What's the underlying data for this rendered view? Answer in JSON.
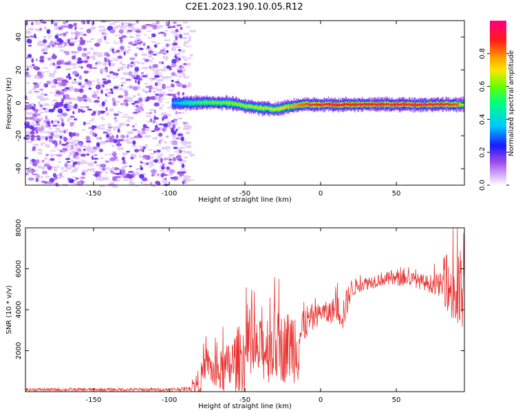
{
  "title": "C2E1.2023.190.10.05.R12",
  "colors": {
    "snr_line": "#e8312f",
    "cmap": [
      "#ffffff",
      "#cfa8f7",
      "#9b4de8",
      "#7a16e6",
      "#1a1aff",
      "#00c8ff",
      "#00ff7f",
      "#c8ff00",
      "#ff9900",
      "#ff1a1a",
      "#ff0080"
    ]
  },
  "chart_data": [
    {
      "type": "heatmap",
      "xlabel": "Height of straight line (km)",
      "ylabel": "Frequency (Hz)",
      "xlim": [
        -195,
        95
      ],
      "ylim": [
        -50,
        50
      ],
      "xticks": [
        -150,
        -100,
        -50,
        0,
        50
      ],
      "yticks": [
        -40,
        -20,
        0,
        20,
        40
      ],
      "colorbar": {
        "label": "Normalized spectral amplitude",
        "range": [
          0,
          1
        ],
        "ticks": [
          "0.0",
          "0.2",
          "0.4",
          "0.6",
          "0.8"
        ],
        "tick_values": [
          0.0,
          0.2,
          0.4,
          0.6,
          0.8
        ]
      },
      "noise_region_x": [
        -195,
        -86
      ],
      "signal_onset_x": -100,
      "signal_track": {
        "x": [
          -98,
          -90,
          -80,
          -70,
          -60,
          -50,
          -40,
          -30,
          -20,
          -10,
          0,
          10,
          20,
          30,
          40,
          50,
          60,
          70,
          80,
          90,
          95
        ],
        "freq_hz": [
          0,
          0,
          0,
          0,
          0,
          -2,
          -3,
          -4,
          -2,
          -1,
          -1,
          -1,
          -1,
          -1,
          -1,
          -1,
          -1,
          -1,
          -1,
          -1,
          -1
        ],
        "amplitude": [
          0.35,
          0.45,
          0.55,
          0.6,
          0.62,
          0.65,
          0.66,
          0.68,
          0.75,
          0.85,
          0.9,
          0.9,
          0.88,
          0.88,
          0.88,
          0.9,
          0.9,
          0.9,
          0.88,
          0.85,
          0.6
        ]
      }
    },
    {
      "type": "line",
      "xlabel": "Height of straight line (km)",
      "ylabel": "SNR (10 * v/v)",
      "xlim": [
        -195,
        95
      ],
      "ylim": [
        0,
        8000
      ],
      "xticks": [
        -150,
        -100,
        -50,
        0,
        50
      ],
      "yticks": [
        2000,
        4000,
        6000,
        8000
      ],
      "series": [
        {
          "x": [
            -195,
            -150,
            -100,
            -86,
            -80,
            -75,
            -70,
            -60,
            -55,
            -50,
            -45,
            -40,
            -35,
            -30,
            -25,
            -20,
            -15,
            -10,
            -5,
            0,
            5,
            10,
            15,
            20,
            25,
            30,
            40,
            50,
            60,
            70,
            80,
            85,
            90,
            95
          ],
          "y_base": [
            100,
            100,
            100,
            150,
            500,
            1500,
            800,
            1200,
            1600,
            1700,
            1800,
            2000,
            2200,
            2300,
            2100,
            2300,
            2500,
            3400,
            3500,
            3900,
            3800,
            4100,
            3800,
            5000,
            5200,
            5300,
            5500,
            5500,
            5500,
            5300,
            5200,
            5000,
            4800,
            4700
          ],
          "y_spread": [
            80,
            80,
            80,
            100,
            700,
            700,
            900,
            1300,
            1600,
            1800,
            1600,
            1500,
            1800,
            1800,
            1700,
            1800,
            2200,
            900,
            600,
            500,
            600,
            600,
            900,
            500,
            350,
            350,
            350,
            350,
            350,
            400,
            600,
            1300,
            2600,
            1800
          ]
        }
      ]
    }
  ]
}
